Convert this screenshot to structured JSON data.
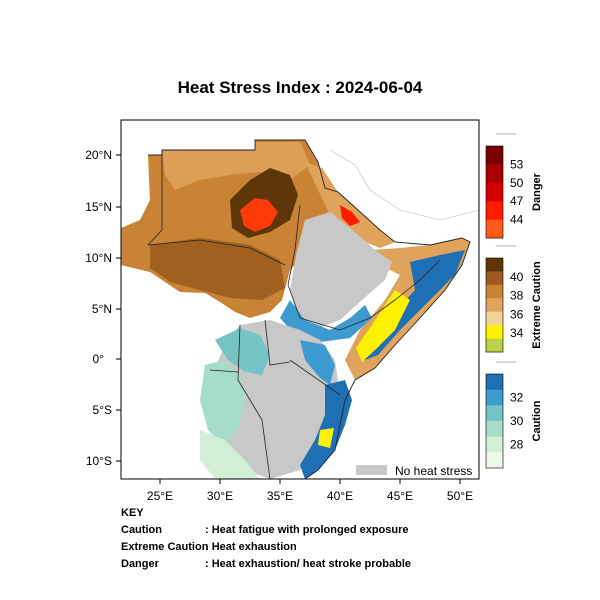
{
  "title": "Heat Stress Index : 2024-06-04",
  "lat_ticks": [
    "20°N",
    "15°N",
    "10°N",
    "5°N",
    "0°",
    "5°S",
    "10°S"
  ],
  "lon_ticks": [
    "25°E",
    "30°E",
    "35°E",
    "40°E",
    "45°E",
    "50°E"
  ],
  "no_heat_stress_label": "No heat stress",
  "colorbars": [
    {
      "title": "Danger",
      "ticks": [
        "53",
        "50",
        "47",
        "44"
      ],
      "colors": [
        "#7a0000",
        "#a80000",
        "#d40000",
        "#ff1a00",
        "#ff5a1a"
      ]
    },
    {
      "title": "Extreme Caution",
      "ticks": [
        "40",
        "38",
        "36",
        "34"
      ],
      "colors": [
        "#5e3608",
        "#9c5c1e",
        "#c98335",
        "#e0a35c",
        "#f2d49a",
        "#fff200",
        "#b8d24a"
      ]
    },
    {
      "title": "Caution",
      "ticks": [
        "32",
        "30",
        "28"
      ],
      "colors": [
        "#1f6fb4",
        "#3e9bd0",
        "#74c4c6",
        "#a7dcc8",
        "#d2eed6",
        "#eef8ea"
      ]
    }
  ],
  "colors": {
    "no_heat_stress": "#c8c8c8",
    "sea": "#ffffff",
    "land_outside": "#ffffff"
  },
  "key": {
    "heading": "KEY",
    "rows": [
      {
        "term": "Caution",
        "desc": ": Heat fatigue with prolonged exposure"
      },
      {
        "term": "Extreme Caution",
        "desc": ": Heat exhaustion"
      },
      {
        "term": "Danger",
        "desc": ": Heat exhaustion/ heat stroke probable"
      }
    ]
  }
}
